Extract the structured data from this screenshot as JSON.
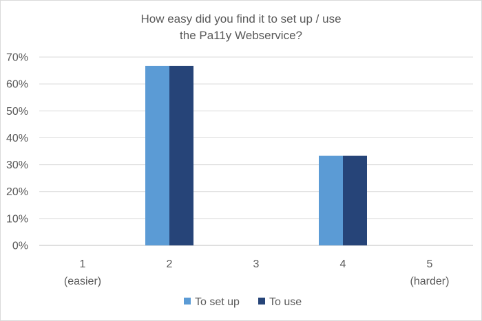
{
  "chart_data": {
    "type": "bar",
    "title": [
      "How easy did you find it to set up / use",
      "the Pa11y Webservice?"
    ],
    "categories": [
      [
        "1",
        "(easier)"
      ],
      [
        "2"
      ],
      [
        "3"
      ],
      [
        "4"
      ],
      [
        "5",
        "(harder)"
      ]
    ],
    "series": [
      {
        "name": "To set up",
        "color": "#5b9bd5",
        "values": [
          0,
          66.7,
          0,
          33.3,
          0
        ]
      },
      {
        "name": "To use",
        "color": "#264478",
        "values": [
          0,
          66.7,
          0,
          33.3,
          0
        ]
      }
    ],
    "ylim": [
      0,
      70
    ],
    "yticks": [
      "0%",
      "10%",
      "20%",
      "30%",
      "40%",
      "50%",
      "60%",
      "70%"
    ],
    "grid": true,
    "legend_position": "bottom"
  }
}
